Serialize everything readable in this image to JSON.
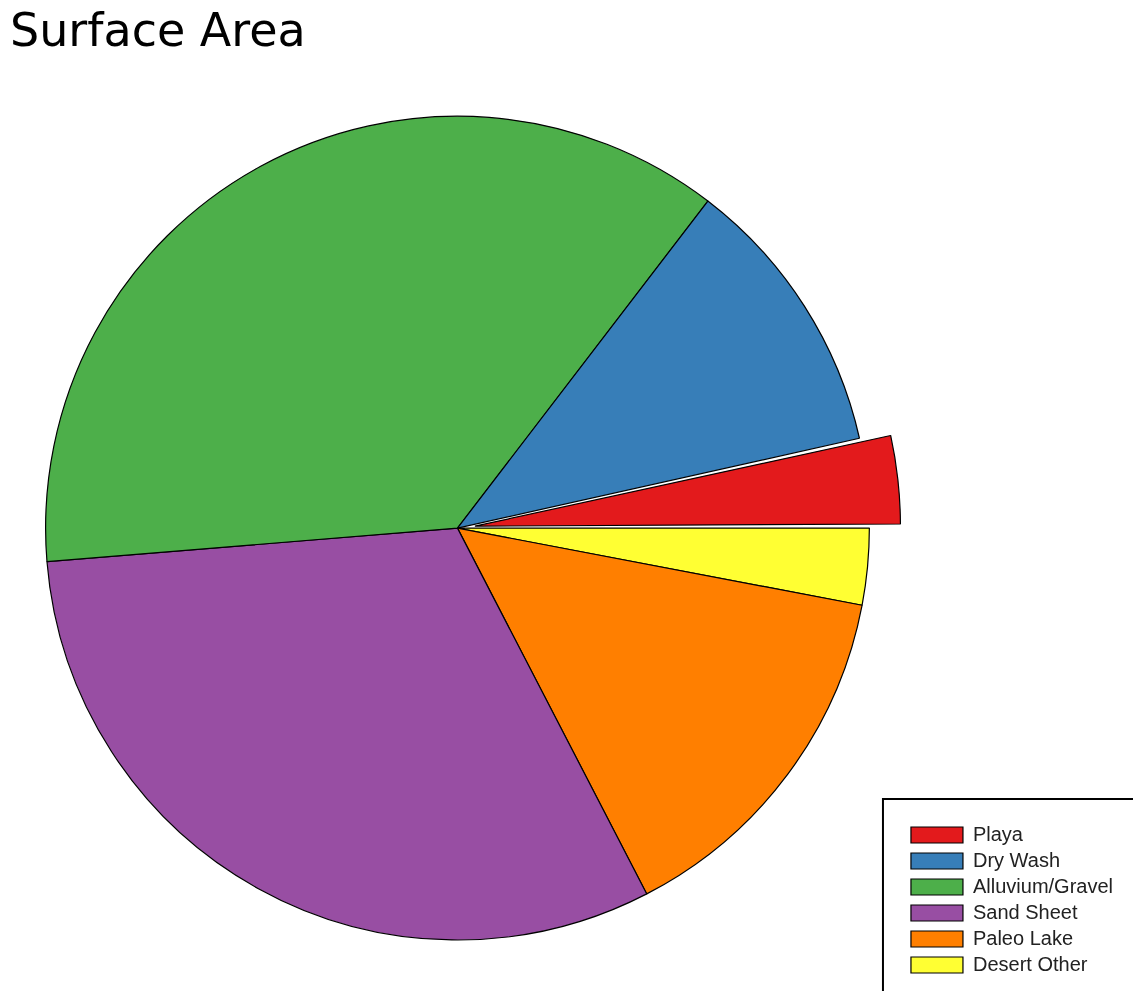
{
  "chart_data": {
    "type": "pie",
    "title": "Surface Area",
    "categories": [
      "Playa",
      "Dry Wash",
      "Alluvium/Gravel",
      "Sand Sheet",
      "Paleo Lake",
      "Desert Other"
    ],
    "values": [
      3.5,
      11.1,
      36.7,
      31.3,
      14.4,
      3.0
    ],
    "colors": [
      "#e31a1c",
      "#377eb8",
      "#4daf4a",
      "#984ea3",
      "#ff7f00",
      "#ffff33"
    ],
    "legend": "bottom right"
  }
}
